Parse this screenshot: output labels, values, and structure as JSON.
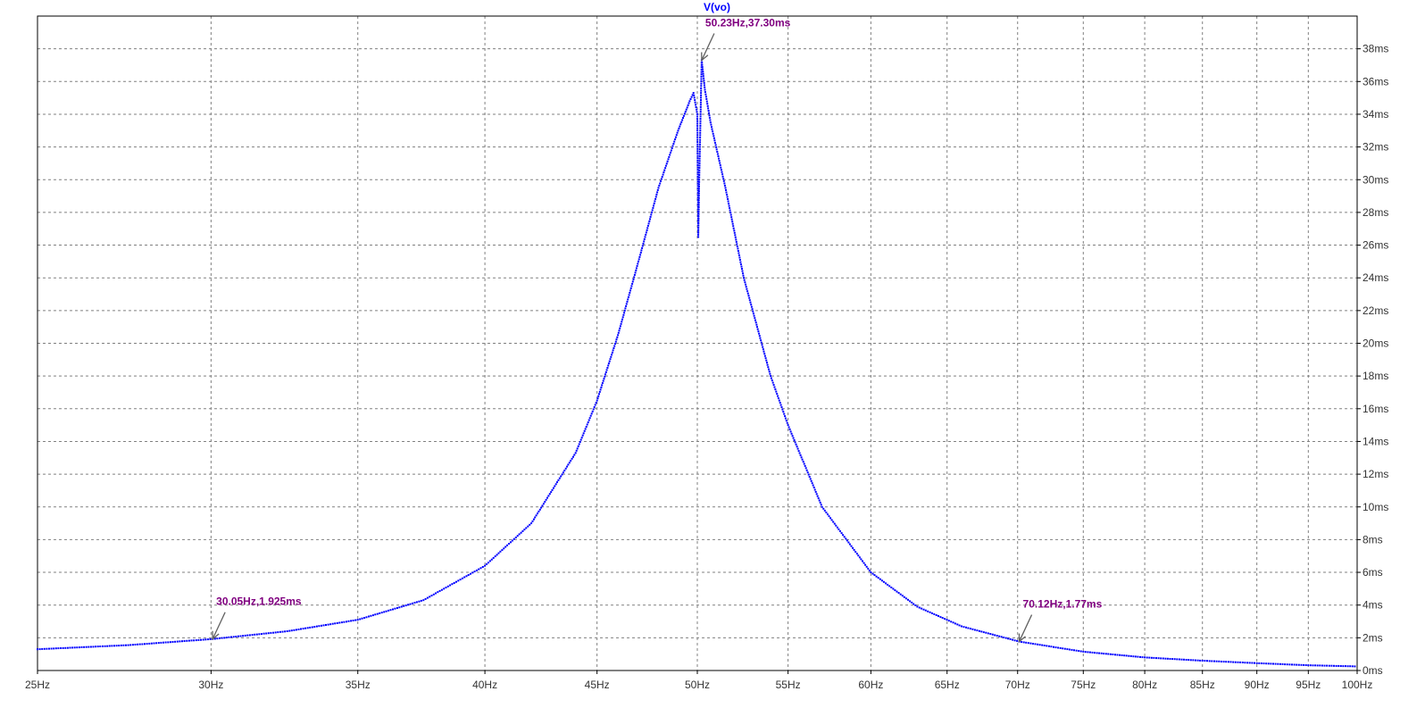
{
  "colors": {
    "trace": "#0000ff",
    "title": "#0000ff",
    "annotation": "#800080",
    "grid": "#808080",
    "axis": "#000000",
    "background": "#ffffff"
  },
  "chart_data": {
    "type": "scatter",
    "title": "V(vo)",
    "xlabel": "",
    "ylabel": "",
    "xlim": [
      25,
      100
    ],
    "ylim": [
      0,
      40
    ],
    "x_scale": "log",
    "grid": true,
    "x_ticks": [
      {
        "value": 25,
        "label": "25Hz"
      },
      {
        "value": 30,
        "label": "30Hz"
      },
      {
        "value": 35,
        "label": "35Hz"
      },
      {
        "value": 40,
        "label": "40Hz"
      },
      {
        "value": 45,
        "label": "45Hz"
      },
      {
        "value": 50,
        "label": "50Hz"
      },
      {
        "value": 55,
        "label": "55Hz"
      },
      {
        "value": 60,
        "label": "60Hz"
      },
      {
        "value": 65,
        "label": "65Hz"
      },
      {
        "value": 70,
        "label": "70Hz"
      },
      {
        "value": 75,
        "label": "75Hz"
      },
      {
        "value": 80,
        "label": "80Hz"
      },
      {
        "value": 85,
        "label": "85Hz"
      },
      {
        "value": 90,
        "label": "90Hz"
      },
      {
        "value": 95,
        "label": "95Hz"
      },
      {
        "value": 100,
        "label": "100Hz"
      }
    ],
    "y_ticks": [
      {
        "value": 0,
        "label": "0ms"
      },
      {
        "value": 2,
        "label": "2ms"
      },
      {
        "value": 4,
        "label": "4ms"
      },
      {
        "value": 6,
        "label": "6ms"
      },
      {
        "value": 8,
        "label": "8ms"
      },
      {
        "value": 10,
        "label": "10ms"
      },
      {
        "value": 12,
        "label": "12ms"
      },
      {
        "value": 14,
        "label": "14ms"
      },
      {
        "value": 16,
        "label": "16ms"
      },
      {
        "value": 18,
        "label": "18ms"
      },
      {
        "value": 20,
        "label": "20ms"
      },
      {
        "value": 22,
        "label": "22ms"
      },
      {
        "value": 24,
        "label": "24ms"
      },
      {
        "value": 26,
        "label": "26ms"
      },
      {
        "value": 28,
        "label": "28ms"
      },
      {
        "value": 30,
        "label": "30ms"
      },
      {
        "value": 32,
        "label": "32ms"
      },
      {
        "value": 34,
        "label": "34ms"
      },
      {
        "value": 36,
        "label": "36ms"
      },
      {
        "value": 38,
        "label": "38ms"
      }
    ],
    "series": [
      {
        "x": [
          25.0,
          27.5,
          30.05,
          32.5,
          35.0,
          37.5,
          40.0,
          42.0,
          44.0,
          45.0,
          46.0,
          47.0,
          48.0,
          49.0,
          49.6,
          49.8,
          50.0,
          50.05,
          50.1,
          50.23,
          50.4,
          50.7,
          51.5,
          52.5,
          54.0,
          55.0,
          57.0,
          60.0,
          63.0,
          66.0,
          70.12,
          75.0,
          80.0,
          85.0,
          90.0,
          95.0,
          100.0
        ],
        "y": [
          1.3,
          1.55,
          1.925,
          2.4,
          3.1,
          4.3,
          6.4,
          9.0,
          13.3,
          16.5,
          20.5,
          25.0,
          29.5,
          33.0,
          34.8,
          35.3,
          34.0,
          26.5,
          30.0,
          37.3,
          35.5,
          33.5,
          29.5,
          24.0,
          18.0,
          15.0,
          10.0,
          6.0,
          3.9,
          2.7,
          1.77,
          1.15,
          0.8,
          0.6,
          0.45,
          0.32,
          0.25
        ]
      }
    ],
    "annotations": [
      {
        "x": 30.05,
        "y": 1.925,
        "text": "30.05Hz,1.925ms"
      },
      {
        "x": 50.23,
        "y": 37.3,
        "text": "50.23Hz,37.30ms"
      },
      {
        "x": 70.12,
        "y": 1.77,
        "text": "70.12Hz,1.77ms"
      }
    ]
  }
}
